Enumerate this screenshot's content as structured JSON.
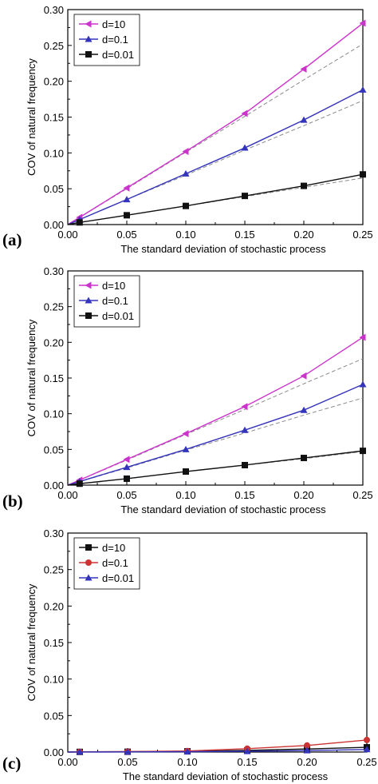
{
  "chart_data": [
    {
      "type": "line",
      "panel_label": "(a)",
      "xlabel": "The standard deviation of stochastic process",
      "ylabel": "COV of natural frequency",
      "xlim": [
        0.0,
        0.25
      ],
      "ylim": [
        0.0,
        0.3
      ],
      "xticks": [
        "0.00",
        "0.05",
        "0.10",
        "0.15",
        "0.20",
        "0.25"
      ],
      "yticks": [
        "0.00",
        "0.05",
        "0.10",
        "0.15",
        "0.20",
        "0.25",
        "0.30"
      ],
      "legend_position": "top-left",
      "x": [
        0.01,
        0.05,
        0.1,
        0.15,
        0.2,
        0.25
      ],
      "series": [
        {
          "name": "d=10",
          "marker": "triangle-left",
          "color": "#cc33cc",
          "values": [
            0.01,
            0.051,
            0.102,
            0.155,
            0.217,
            0.281
          ],
          "linear_dashed": [
            0.01,
            0.05,
            0.101,
            0.151,
            0.202,
            0.252
          ]
        },
        {
          "name": "d=0.1",
          "marker": "triangle-up",
          "color": "#3333bb",
          "values": [
            0.007,
            0.035,
            0.071,
            0.107,
            0.146,
            0.188
          ],
          "linear_dashed": [
            0.007,
            0.035,
            0.069,
            0.104,
            0.138,
            0.173
          ]
        },
        {
          "name": "d=0.01",
          "marker": "square",
          "color": "#111111",
          "values": [
            0.003,
            0.013,
            0.026,
            0.04,
            0.054,
            0.07
          ],
          "linear_dashed": [
            0.003,
            0.013,
            0.026,
            0.039,
            0.052,
            0.065
          ]
        }
      ]
    },
    {
      "type": "line",
      "panel_label": "(b)",
      "xlabel": "The standard deviation of stochastic process",
      "ylabel": "COV of natural frequency",
      "xlim": [
        0.0,
        0.25
      ],
      "ylim": [
        0.0,
        0.3
      ],
      "xticks": [
        "0.00",
        "0.05",
        "0.10",
        "0.15",
        "0.20",
        "0.25"
      ],
      "yticks": [
        "0.00",
        "0.05",
        "0.10",
        "0.15",
        "0.20",
        "0.25",
        "0.30"
      ],
      "legend_position": "top-left",
      "x": [
        0.01,
        0.05,
        0.1,
        0.15,
        0.2,
        0.25
      ],
      "series": [
        {
          "name": "d=10",
          "marker": "triangle-left",
          "color": "#cc33cc",
          "values": [
            0.007,
            0.036,
            0.072,
            0.11,
            0.153,
            0.207
          ],
          "linear_dashed": [
            0.007,
            0.035,
            0.071,
            0.106,
            0.142,
            0.177
          ]
        },
        {
          "name": "d=0.1",
          "marker": "triangle-up",
          "color": "#3333bb",
          "values": [
            0.005,
            0.025,
            0.05,
            0.077,
            0.105,
            0.141
          ],
          "linear_dashed": [
            0.005,
            0.024,
            0.049,
            0.073,
            0.098,
            0.122
          ]
        },
        {
          "name": "d=0.01",
          "marker": "square",
          "color": "#111111",
          "values": [
            0.002,
            0.009,
            0.019,
            0.028,
            0.038,
            0.048
          ],
          "linear_dashed": [
            0.002,
            0.009,
            0.019,
            0.028,
            0.037,
            0.047
          ]
        }
      ]
    },
    {
      "type": "line",
      "panel_label": "(c)",
      "xlabel": "The standard deviation of stochastic process",
      "ylabel": "COV of natural frequency",
      "xlim": [
        0.0,
        0.25
      ],
      "ylim": [
        0.0,
        0.3
      ],
      "xticks": [
        "0.00",
        "0.05",
        "0.10",
        "0.15",
        "0.20",
        "0.25"
      ],
      "yticks": [
        "0.00",
        "0.05",
        "0.10",
        "0.15",
        "0.20",
        "0.25",
        "0.30"
      ],
      "legend_position": "top-left",
      "x": [
        0.01,
        0.05,
        0.1,
        0.15,
        0.2,
        0.25
      ],
      "series": [
        {
          "name": "d=10",
          "marker": "square",
          "color": "#111111",
          "values": [
            0.0002,
            0.0004,
            0.001,
            0.0022,
            0.0042,
            0.0065
          ]
        },
        {
          "name": "d=0.1",
          "marker": "circle",
          "color": "#cc3333",
          "values": [
            0.0003,
            0.0006,
            0.0014,
            0.0046,
            0.009,
            0.0165
          ]
        },
        {
          "name": "d=0.01",
          "marker": "triangle-up",
          "color": "#3333bb",
          "values": [
            0.0001,
            0.0002,
            0.0004,
            0.001,
            0.002,
            0.0035
          ]
        }
      ]
    }
  ]
}
